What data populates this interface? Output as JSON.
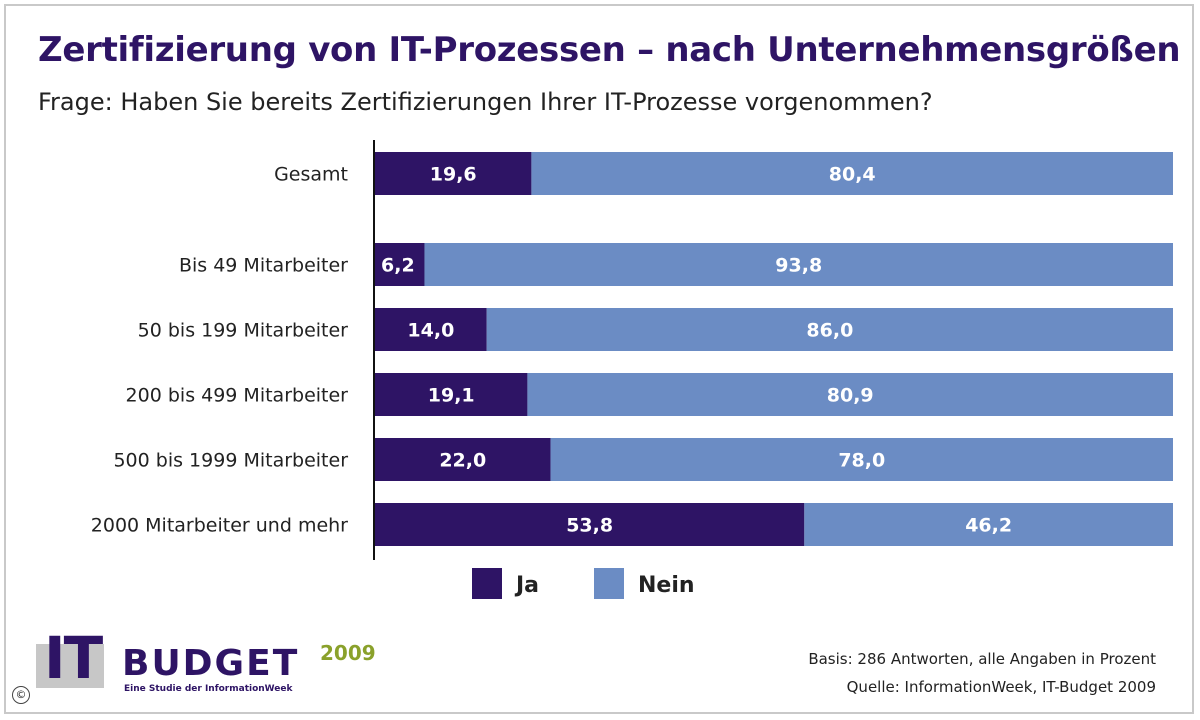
{
  "header": {
    "title": "Zertifizierung von IT-Prozessen – nach Unternehmensgrößen",
    "subtitle": "Frage: Haben Sie bereits Zertifizierungen Ihrer IT-Prozesse vorgenommen?"
  },
  "colors": {
    "ja": "#2e1465",
    "nein": "#6b8cc4",
    "title": "#2e1465",
    "logo_year": "#8aa12b"
  },
  "chart_data": {
    "type": "bar",
    "orientation": "horizontal",
    "stacked": true,
    "categories": [
      "Gesamt",
      "Bis 49 Mitarbeiter",
      "50 bis 199 Mitarbeiter",
      "200 bis 499 Mitarbeiter",
      "500 bis 1999 Mitarbeiter",
      "2000 Mitarbeiter und mehr"
    ],
    "series": [
      {
        "name": "Ja",
        "values": [
          19.6,
          6.2,
          14.0,
          19.1,
          22.0,
          53.8
        ],
        "labels": [
          "19,6",
          "6,2",
          "14,0",
          "19,1",
          "22,0",
          "53,8"
        ]
      },
      {
        "name": "Nein",
        "values": [
          80.4,
          93.8,
          86.0,
          80.9,
          78.0,
          46.2
        ],
        "labels": [
          "80,4",
          "93,8",
          "86,0",
          "80,9",
          "78,0",
          "46,2"
        ]
      }
    ],
    "xlim": [
      0,
      100
    ],
    "grid": false,
    "legend": "bottom-center"
  },
  "footer": {
    "basis": "Basis: 286 Antworten, alle Angaben in Prozent",
    "source": "Quelle: InformationWeek, IT-Budget 2009",
    "copyright": "©"
  },
  "logo": {
    "it": "IT",
    "budget": "BUDGET",
    "year": "2009",
    "tagline": "Eine Studie der InformationWeek"
  }
}
